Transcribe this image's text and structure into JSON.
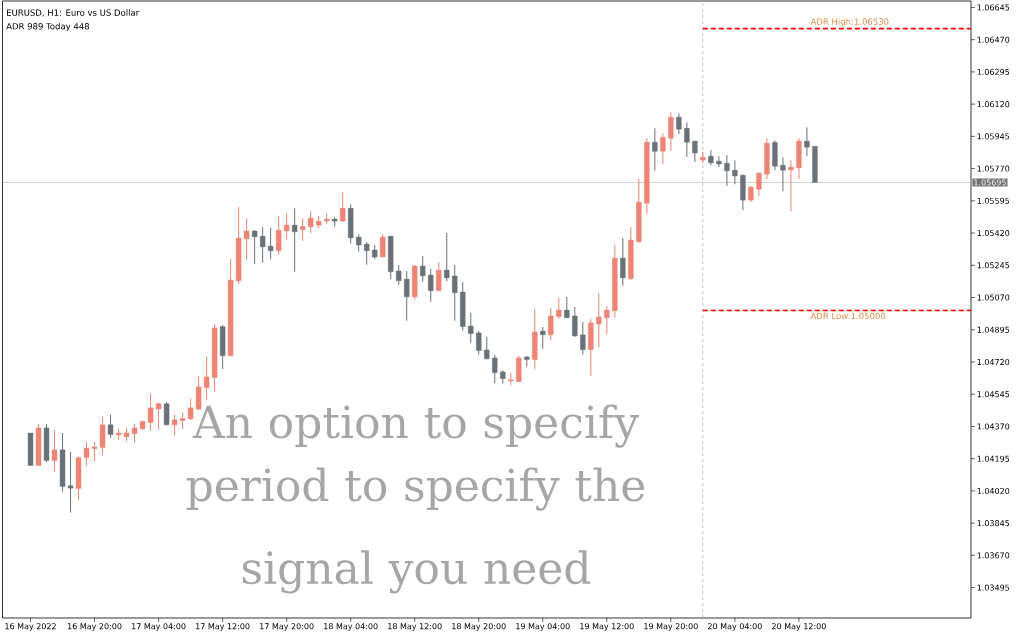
{
  "chart_data": {
    "type": "candlestick",
    "title": "EURUSD, H1: Euro vs US Dollar",
    "subtitle": "ADR 989 Today 448",
    "annotations": [
      "An option to specify period to specify the signal you need"
    ],
    "x": [
      "2022-05-16T12:00",
      "2022-05-16T13:00",
      "2022-05-16T14:00",
      "2022-05-16T15:00",
      "2022-05-16T16:00",
      "2022-05-16T17:00",
      "2022-05-16T18:00",
      "2022-05-16T19:00",
      "2022-05-16T20:00",
      "2022-05-16T21:00",
      "2022-05-16T22:00",
      "2022-05-16T23:00",
      "2022-05-17T00:00",
      "2022-05-17T01:00",
      "2022-05-17T02:00",
      "2022-05-17T03:00",
      "2022-05-17T04:00",
      "2022-05-17T05:00",
      "2022-05-17T06:00",
      "2022-05-17T07:00",
      "2022-05-17T08:00",
      "2022-05-17T09:00",
      "2022-05-17T10:00",
      "2022-05-17T11:00",
      "2022-05-17T12:00",
      "2022-05-17T13:00",
      "2022-05-17T14:00",
      "2022-05-17T15:00",
      "2022-05-17T16:00",
      "2022-05-17T17:00",
      "2022-05-17T18:00",
      "2022-05-17T19:00",
      "2022-05-17T20:00",
      "2022-05-17T21:00",
      "2022-05-17T22:00",
      "2022-05-17T23:00",
      "2022-05-18T00:00",
      "2022-05-18T01:00",
      "2022-05-18T02:00",
      "2022-05-18T03:00",
      "2022-05-18T04:00",
      "2022-05-18T05:00",
      "2022-05-18T06:00",
      "2022-05-18T07:00",
      "2022-05-18T08:00",
      "2022-05-18T09:00",
      "2022-05-18T10:00",
      "2022-05-18T11:00",
      "2022-05-18T12:00",
      "2022-05-18T13:00",
      "2022-05-18T14:00",
      "2022-05-18T15:00",
      "2022-05-18T16:00",
      "2022-05-18T17:00",
      "2022-05-18T18:00",
      "2022-05-18T19:00",
      "2022-05-18T20:00",
      "2022-05-18T21:00",
      "2022-05-18T22:00",
      "2022-05-18T23:00",
      "2022-05-19T00:00",
      "2022-05-19T01:00",
      "2022-05-19T02:00",
      "2022-05-19T03:00",
      "2022-05-19T04:00",
      "2022-05-19T05:00",
      "2022-05-19T06:00",
      "2022-05-19T07:00",
      "2022-05-19T08:00",
      "2022-05-19T09:00",
      "2022-05-19T10:00",
      "2022-05-19T11:00",
      "2022-05-19T12:00",
      "2022-05-19T13:00",
      "2022-05-19T14:00",
      "2022-05-19T15:00",
      "2022-05-19T16:00",
      "2022-05-19T17:00",
      "2022-05-19T18:00",
      "2022-05-19T19:00",
      "2022-05-19T20:00",
      "2022-05-19T21:00",
      "2022-05-19T22:00",
      "2022-05-19T23:00",
      "2022-05-20T00:00",
      "2022-05-20T01:00",
      "2022-05-20T02:00",
      "2022-05-20T03:00",
      "2022-05-20T04:00",
      "2022-05-20T05:00",
      "2022-05-20T06:00",
      "2022-05-20T07:00",
      "2022-05-20T08:00",
      "2022-05-20T09:00",
      "2022-05-20T10:00",
      "2022-05-20T11:00",
      "2022-05-20T12:00",
      "2022-05-20T13:00",
      "2022-05-20T14:00"
    ],
    "ohlc": [
      [
        1.04334,
        1.04334,
        1.04158,
        1.04158
      ],
      [
        1.04158,
        1.04382,
        1.04158,
        1.04362
      ],
      [
        1.04362,
        1.04382,
        1.04176,
        1.04185
      ],
      [
        1.04185,
        1.04352,
        1.04125,
        1.04243
      ],
      [
        1.04243,
        1.04334,
        1.04017,
        1.04044
      ],
      [
        1.04048,
        1.04231,
        1.03903,
        1.04035
      ],
      [
        1.04033,
        1.04207,
        1.03972,
        1.042
      ],
      [
        1.04201,
        1.04285,
        1.04156,
        1.04252
      ],
      [
        1.0425,
        1.04285,
        1.0418,
        1.04259
      ],
      [
        1.04256,
        1.0442,
        1.04216,
        1.04379
      ],
      [
        1.04379,
        1.04433,
        1.04307,
        1.04326
      ],
      [
        1.04324,
        1.04357,
        1.04297,
        1.04334
      ],
      [
        1.04314,
        1.04362,
        1.04288,
        1.04335
      ],
      [
        1.04331,
        1.04384,
        1.04281,
        1.04362
      ],
      [
        1.04357,
        1.04402,
        1.04352,
        1.04397
      ],
      [
        1.04391,
        1.04547,
        1.04348,
        1.04471
      ],
      [
        1.04465,
        1.045,
        1.04352,
        1.04493
      ],
      [
        1.04493,
        1.04503,
        1.04375,
        1.04379
      ],
      [
        1.04379,
        1.04433,
        1.04319,
        1.04406
      ],
      [
        1.04402,
        1.04444,
        1.04357,
        1.04413
      ],
      [
        1.04411,
        1.0452,
        1.04406,
        1.04471
      ],
      [
        1.04464,
        1.04644,
        1.0446,
        1.04585
      ],
      [
        1.04581,
        1.04749,
        1.04514,
        1.04639
      ],
      [
        1.04635,
        1.04926,
        1.04558,
        1.04905
      ],
      [
        1.04912,
        1.04921,
        1.04682,
        1.04754
      ],
      [
        1.04754,
        1.05279,
        1.04754,
        1.05165
      ],
      [
        1.05161,
        1.05562,
        1.05143,
        1.05393
      ],
      [
        1.05389,
        1.05501,
        1.05273,
        1.05431
      ],
      [
        1.05431,
        1.05436,
        1.05252,
        1.054
      ],
      [
        1.05403,
        1.05452,
        1.05259,
        1.05345
      ],
      [
        1.05349,
        1.05447,
        1.05279,
        1.05324
      ],
      [
        1.05324,
        1.05512,
        1.05302,
        1.05436
      ],
      [
        1.05432,
        1.05528,
        1.05387,
        1.05463
      ],
      [
        1.05463,
        1.05555,
        1.0521,
        1.05427
      ],
      [
        1.05438,
        1.05501,
        1.05378,
        1.05456
      ],
      [
        1.05454,
        1.05539,
        1.05421,
        1.05501
      ],
      [
        1.05463,
        1.05512,
        1.05448,
        1.05485
      ],
      [
        1.05485,
        1.05528,
        1.05469,
        1.05496
      ],
      [
        1.05496,
        1.05506,
        1.05454,
        1.05485
      ],
      [
        1.05485,
        1.05642,
        1.05481,
        1.05555
      ],
      [
        1.05555,
        1.05577,
        1.05362,
        1.05394
      ],
      [
        1.05398,
        1.05414,
        1.05318,
        1.05355
      ],
      [
        1.0536,
        1.05371,
        1.05248,
        1.05324
      ],
      [
        1.05328,
        1.05355,
        1.05279,
        1.0529
      ],
      [
        1.0529,
        1.05414,
        1.0529,
        1.05398
      ],
      [
        1.05403,
        1.05403,
        1.0517,
        1.0521
      ],
      [
        1.05214,
        1.05246,
        1.05139,
        1.05161
      ],
      [
        1.0517,
        1.05214,
        1.04944,
        1.05074
      ],
      [
        1.05074,
        1.05246,
        1.05058,
        1.05241
      ],
      [
        1.05241,
        1.05295,
        1.05156,
        1.05188
      ],
      [
        1.05192,
        1.05225,
        1.05047,
        1.05107
      ],
      [
        1.05107,
        1.05262,
        1.05107,
        1.05219
      ],
      [
        1.05219,
        1.0542,
        1.05159,
        1.05177
      ],
      [
        1.05187,
        1.05246,
        1.04944,
        1.05096
      ],
      [
        1.051,
        1.05154,
        1.0489,
        1.04912
      ],
      [
        1.04915,
        1.04986,
        1.04825,
        1.04874
      ],
      [
        1.04878,
        1.04888,
        1.0476,
        1.04782
      ],
      [
        1.04785,
        1.04856,
        1.04733,
        1.04738
      ],
      [
        1.04742,
        1.04758,
        1.04603,
        1.04662
      ],
      [
        1.04666,
        1.04675,
        1.04603,
        1.0463
      ],
      [
        1.04617,
        1.04661,
        1.04592,
        1.04623
      ],
      [
        1.04613,
        1.04753,
        1.04613,
        1.04742
      ],
      [
        1.04747,
        1.04753,
        1.04695,
        1.04733
      ],
      [
        1.04733,
        1.05008,
        1.04679,
        1.04883
      ],
      [
        1.04888,
        1.0491,
        1.04792,
        1.04868
      ],
      [
        1.04868,
        1.05013,
        1.04836,
        1.0497
      ],
      [
        1.04966,
        1.05069,
        1.04955,
        1.05002
      ],
      [
        1.05002,
        1.05073,
        1.0496,
        1.0496
      ],
      [
        1.0497,
        1.05018,
        1.04857,
        1.04861
      ],
      [
        1.04867,
        1.04937,
        1.0476,
        1.04787
      ],
      [
        1.04787,
        1.04953,
        1.04646,
        1.04932
      ],
      [
        1.04926,
        1.05094,
        1.04798,
        1.04964
      ],
      [
        1.0496,
        1.05024,
        1.04872,
        1.05002
      ],
      [
        1.04998,
        1.05355,
        1.0496,
        1.05284
      ],
      [
        1.05284,
        1.05393,
        1.05134,
        1.05177
      ],
      [
        1.05172,
        1.05452,
        1.05167,
        1.05382
      ],
      [
        1.05373,
        1.05718,
        1.05367,
        1.05588
      ],
      [
        1.05582,
        1.05935,
        1.05524,
        1.05913
      ],
      [
        1.05913,
        1.05989,
        1.05758,
        1.05864
      ],
      [
        1.05864,
        1.05962,
        1.05795,
        1.0594
      ],
      [
        1.05935,
        1.06076,
        1.05866,
        1.06049
      ],
      [
        1.06049,
        1.0607,
        1.05957,
        1.05984
      ],
      [
        1.05989,
        1.06022,
        1.05833,
        1.05913
      ],
      [
        1.05919,
        1.05919,
        1.05806,
        1.05855
      ],
      [
        1.05817,
        1.05861,
        1.05801,
        1.05832
      ],
      [
        1.05837,
        1.0587,
        1.05788,
        1.05801
      ],
      [
        1.0581,
        1.05837,
        1.05778,
        1.05795
      ],
      [
        1.05799,
        1.05843,
        1.05676,
        1.05758
      ],
      [
        1.05761,
        1.05816,
        1.05685,
        1.0573
      ],
      [
        1.05734,
        1.0574,
        1.05544,
        1.05599
      ],
      [
        1.05599,
        1.05675,
        1.05588,
        1.05669
      ],
      [
        1.05658,
        1.0575,
        1.05622,
        1.05745
      ],
      [
        1.0574,
        1.05935,
        1.05713,
        1.05908
      ],
      [
        1.05913,
        1.05924,
        1.05761,
        1.05783
      ],
      [
        1.05788,
        1.05832,
        1.05647,
        1.05761
      ],
      [
        1.05763,
        1.05816,
        1.05539,
        1.05778
      ],
      [
        1.05774,
        1.05935,
        1.05713,
        1.05919
      ],
      [
        1.05919,
        1.05994,
        1.05837,
        1.05886
      ],
      [
        1.05891,
        1.05891,
        1.05695,
        1.05695
      ]
    ],
    "colors": [
      "#6b7179",
      "#ef8474",
      "#6b7179",
      "#ef8474",
      "#6b7179",
      "#6b7179",
      "#ef8474",
      "#ef8474",
      "#ef8474",
      "#ef8474",
      "#6b7179",
      "#ef8474",
      "#ef8474",
      "#ef8474",
      "#ef8474",
      "#ef8474",
      "#ef8474",
      "#6b7179",
      "#ef8474",
      "#ef8474",
      "#ef8474",
      "#ef8474",
      "#ef8474",
      "#ef8474",
      "#6b7179",
      "#ef8474",
      "#ef8474",
      "#ef8474",
      "#6b7179",
      "#6b7179",
      "#6b7179",
      "#ef8474",
      "#ef8474",
      "#6b7179",
      "#ef8474",
      "#ef8474",
      "#ef8474",
      "#ef8474",
      "#6b7179",
      "#ef8474",
      "#6b7179",
      "#6b7179",
      "#6b7179",
      "#6b7179",
      "#ef8474",
      "#6b7179",
      "#6b7179",
      "#6b7179",
      "#ef8474",
      "#6b7179",
      "#6b7179",
      "#ef8474",
      "#6b7179",
      "#6b7179",
      "#6b7179",
      "#6b7179",
      "#6b7179",
      "#6b7179",
      "#6b7179",
      "#6b7179",
      "#ef8474",
      "#ef8474",
      "#6b7179",
      "#ef8474",
      "#6b7179",
      "#ef8474",
      "#ef8474",
      "#6b7179",
      "#6b7179",
      "#6b7179",
      "#ef8474",
      "#ef8474",
      "#ef8474",
      "#ef8474",
      "#6b7179",
      "#ef8474",
      "#ef8474",
      "#ef8474",
      "#6b7179",
      "#ef8474",
      "#ef8474",
      "#6b7179",
      "#6b7179",
      "#6b7179",
      "#ef8474",
      "#6b7179",
      "#6b7179",
      "#6b7179",
      "#6b7179",
      "#6b7179",
      "#ef8474",
      "#ef8474",
      "#ef8474",
      "#6b7179",
      "#6b7179",
      "#ef8474",
      "#ef8474",
      "#6b7179",
      "#6b7179"
    ],
    "xlim": [
      "2022-05-16T08:30",
      "2022-05-21T09:30"
    ],
    "ylim": [
      1.0333,
      1.0668
    ],
    "xticks": [
      {
        "value": "2022-05-16T12:00",
        "label": "16 May 2022"
      },
      {
        "value": "2022-05-16T20:00",
        "label": "16 May 20:00"
      },
      {
        "value": "2022-05-17T04:00",
        "label": "17 May 04:00"
      },
      {
        "value": "2022-05-17T12:00",
        "label": "17 May 12:00"
      },
      {
        "value": "2022-05-17T20:00",
        "label": "17 May 20:00"
      },
      {
        "value": "2022-05-18T04:00",
        "label": "18 May 04:00"
      },
      {
        "value": "2022-05-18T12:00",
        "label": "18 May 12:00"
      },
      {
        "value": "2022-05-18T20:00",
        "label": "18 May 20:00"
      },
      {
        "value": "2022-05-19T04:00",
        "label": "19 May 04:00"
      },
      {
        "value": "2022-05-19T12:00",
        "label": "19 May 12:00"
      },
      {
        "value": "2022-05-19T20:00",
        "label": "19 May 20:00"
      },
      {
        "value": "2022-05-20T04:00",
        "label": "20 May 04:00"
      },
      {
        "value": "2022-05-20T12:00",
        "label": "20 May 12:00"
      }
    ],
    "yticks": [
      1.03495,
      {
        "value": 1.0367,
        "label": "1.03670"
      },
      1.03845,
      {
        "value": 1.0402,
        "label": "1.04020"
      },
      1.04195,
      {
        "value": 1.0437,
        "label": "1.04370"
      },
      1.04545,
      {
        "value": 1.0472,
        "label": "1.04720"
      },
      1.04895,
      {
        "value": 1.0507,
        "label": "1.05070"
      },
      1.05245,
      {
        "value": 1.0542,
        "label": "1.05420"
      },
      1.05595,
      {
        "value": 1.0577,
        "label": "1.05770"
      },
      1.05945,
      {
        "value": 1.0612,
        "label": "1.06120"
      },
      1.06295,
      {
        "value": 1.0647,
        "label": "1.06470"
      },
      1.06645
    ],
    "ref_lines": [
      {
        "axis": "x",
        "value": "2022-05-20T00:00",
        "color": "#a8a8a8",
        "line_style": "dotted"
      },
      {
        "axis": "y",
        "value": 1.05695,
        "label": "1.05695",
        "color": "#c0c0c0",
        "line_style": "solid"
      },
      {
        "axis": "y",
        "value": 1.0653,
        "label": "ADR High:1.06530",
        "color": "#ff0000",
        "line_style": "dashed"
      },
      {
        "axis": "y",
        "value": 1.05,
        "label": "ADR Low:1.05000",
        "color": "#ff0000",
        "line_style": "dashed"
      }
    ]
  }
}
